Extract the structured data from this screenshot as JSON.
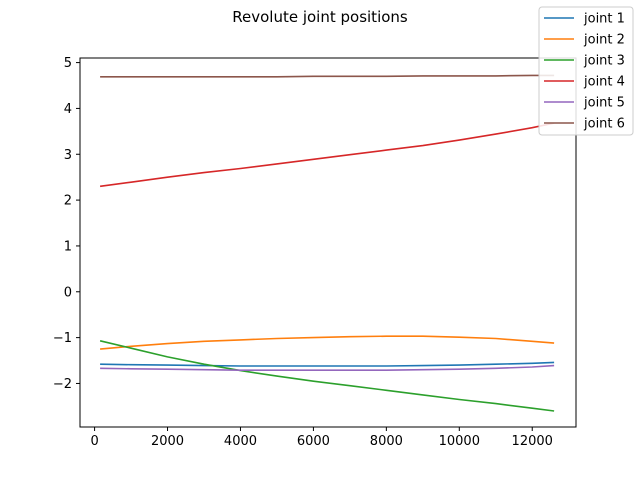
{
  "chart_data": {
    "type": "line",
    "title": "Revolute joint positions",
    "xlabel": "",
    "ylabel": "",
    "xlim": [
      -400,
      13200
    ],
    "ylim": [
      -2.95,
      5.1
    ],
    "xticks": [
      0,
      2000,
      4000,
      6000,
      8000,
      10000,
      12000
    ],
    "xtick_labels": [
      "0",
      "2000",
      "4000",
      "6000",
      "8000",
      "10000",
      "12000"
    ],
    "yticks": [
      -2,
      -1,
      0,
      1,
      2,
      3,
      4,
      5
    ],
    "ytick_labels": [
      "−2",
      "−1",
      "0",
      "1",
      "2",
      "3",
      "4",
      "5"
    ],
    "grid": false,
    "legend_position": "top-right",
    "x": [
      150,
      1000,
      2000,
      3000,
      4000,
      5000,
      6000,
      7000,
      8000,
      9000,
      10000,
      11000,
      12000,
      12600
    ],
    "series": [
      {
        "name": "joint 1",
        "color": "#1f77b4",
        "values": [
          -1.58,
          -1.59,
          -1.6,
          -1.61,
          -1.62,
          -1.62,
          -1.62,
          -1.62,
          -1.62,
          -1.61,
          -1.6,
          -1.58,
          -1.56,
          -1.54
        ]
      },
      {
        "name": "joint 2",
        "color": "#ff7f0e",
        "values": [
          -1.25,
          -1.19,
          -1.13,
          -1.08,
          -1.05,
          -1.02,
          -1.0,
          -0.98,
          -0.97,
          -0.97,
          -0.99,
          -1.02,
          -1.08,
          -1.12
        ]
      },
      {
        "name": "joint 3",
        "color": "#2ca02c",
        "values": [
          -1.07,
          -1.23,
          -1.42,
          -1.58,
          -1.72,
          -1.84,
          -1.95,
          -2.05,
          -2.15,
          -2.25,
          -2.35,
          -2.44,
          -2.54,
          -2.6
        ]
      },
      {
        "name": "joint 4",
        "color": "#d62728",
        "values": [
          2.3,
          2.39,
          2.5,
          2.6,
          2.69,
          2.79,
          2.89,
          2.99,
          3.09,
          3.19,
          3.31,
          3.44,
          3.58,
          3.68
        ]
      },
      {
        "name": "joint 5",
        "color": "#9467bd",
        "values": [
          -1.67,
          -1.68,
          -1.69,
          -1.7,
          -1.71,
          -1.71,
          -1.71,
          -1.71,
          -1.71,
          -1.7,
          -1.69,
          -1.67,
          -1.64,
          -1.61
        ]
      },
      {
        "name": "joint 6",
        "color": "#8c564b",
        "values": [
          4.69,
          4.69,
          4.69,
          4.69,
          4.69,
          4.69,
          4.7,
          4.7,
          4.7,
          4.71,
          4.71,
          4.71,
          4.72,
          4.72
        ]
      }
    ]
  }
}
